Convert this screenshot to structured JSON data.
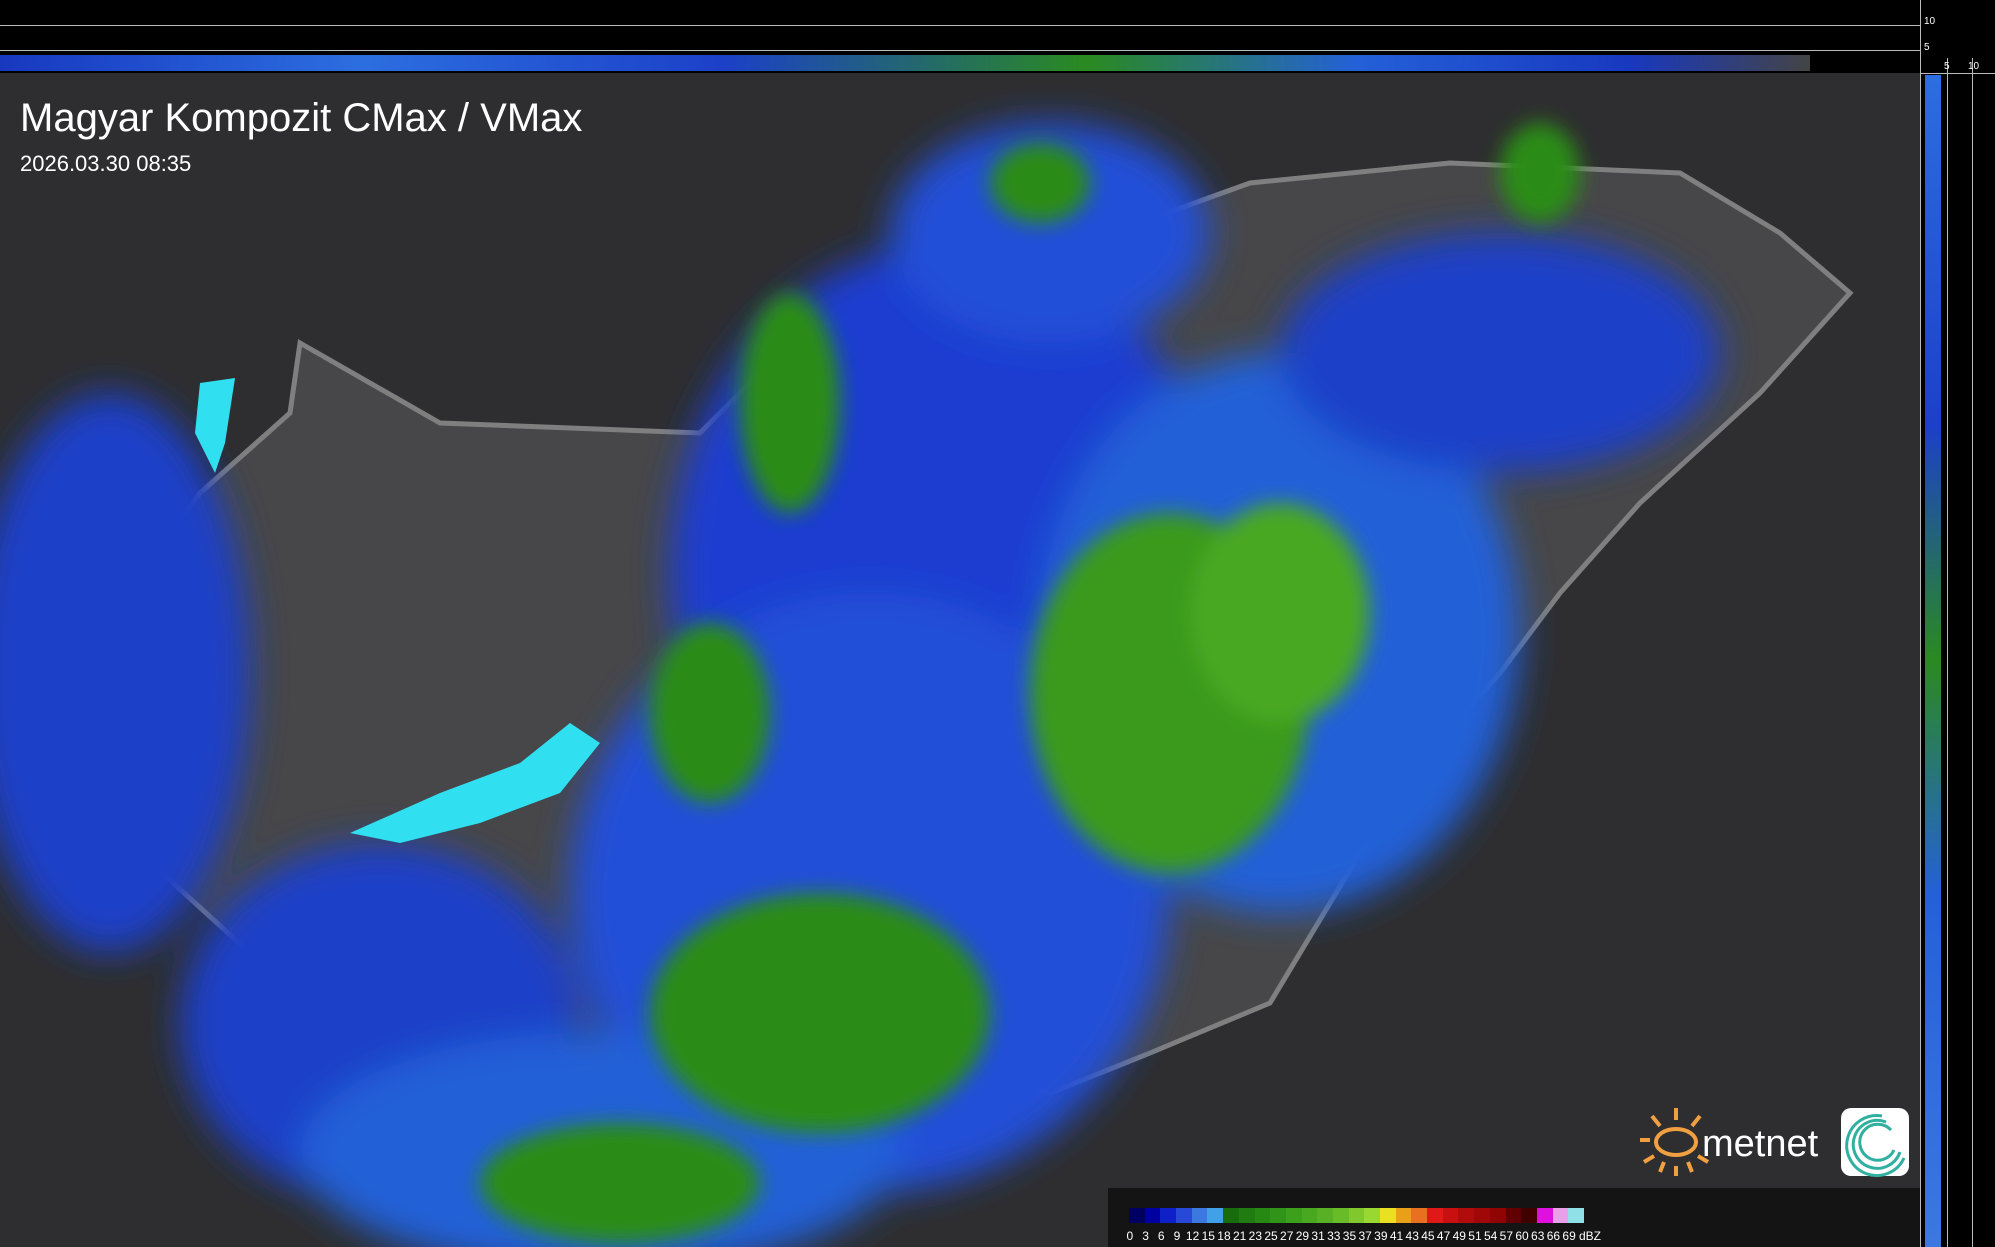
{
  "title": "Magyar Kompozit CMax / VMax",
  "datetime": "2026.03.30 08:35",
  "side_axes": {
    "top_ticks": [
      "10",
      "5"
    ],
    "right_ticks": [
      "5",
      "10"
    ]
  },
  "legend": {
    "unit": "dBZ",
    "labels": [
      "0",
      "3",
      "6",
      "9",
      "12",
      "15",
      "18",
      "21",
      "23",
      "25",
      "27",
      "29",
      "31",
      "33",
      "35",
      "37",
      "39",
      "41",
      "43",
      "45",
      "47",
      "49",
      "51",
      "54",
      "57",
      "60",
      "63",
      "66",
      "69"
    ],
    "colors": [
      "#000060",
      "#0000a0",
      "#1020c8",
      "#2848d8",
      "#3c78e0",
      "#40a0e8",
      "#186c0c",
      "#207c10",
      "#288814",
      "#309418",
      "#3ca01c",
      "#48a820",
      "#58b024",
      "#68bc28",
      "#80c82c",
      "#98d830",
      "#e8e020",
      "#e8a018",
      "#e87020",
      "#e01818",
      "#c81010",
      "#b00c0c",
      "#a00808",
      "#900404",
      "#600000",
      "#400000",
      "#e010e0",
      "#e8a0e8",
      "#90e0e8"
    ]
  },
  "logo": {
    "text": "metnet",
    "sun_color": "#f0a040"
  }
}
